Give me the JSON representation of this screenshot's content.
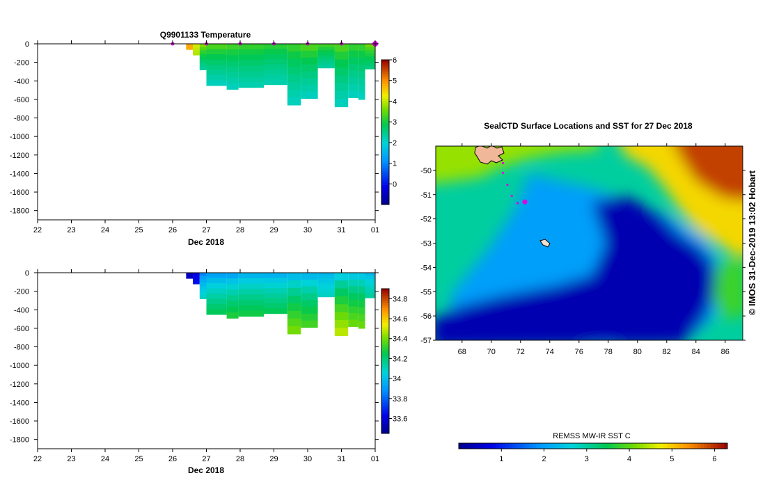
{
  "chart_data": [
    {
      "type": "heatmap",
      "title": "Q9901133  Temperature",
      "xlabel": "Dec 2018",
      "ylabel": "",
      "x_ticks": [
        "22",
        "23",
        "24",
        "25",
        "26",
        "27",
        "28",
        "29",
        "30",
        "31",
        "01"
      ],
      "y_ticks": [
        "0",
        "-200",
        "-400",
        "-600",
        "-800",
        "-1000",
        "-1200",
        "-1400",
        "-1600",
        "-1800"
      ],
      "ylim": [
        -1900,
        0
      ],
      "xlim_days": [
        22,
        32
      ],
      "colorbar": {
        "ticks": [
          "0",
          "1",
          "2",
          "3",
          "4",
          "5",
          "6"
        ],
        "range": [
          -1,
          6
        ]
      },
      "profile_markers_day": [
        26,
        27,
        28,
        29,
        30,
        31,
        32
      ],
      "profiles": [
        {
          "x0": 26.4,
          "x1": 26.6,
          "maxdepth": -60,
          "surface": 4.8,
          "deep": 4.8
        },
        {
          "x0": 26.6,
          "x1": 26.8,
          "maxdepth": -120,
          "surface": 4.2,
          "deep": 3.9
        },
        {
          "x0": 26.8,
          "x1": 27.0,
          "maxdepth": -280,
          "surface": 4.0,
          "deep": 2.3
        },
        {
          "x0": 27.0,
          "x1": 27.6,
          "maxdepth": -450,
          "surface": 3.6,
          "deep": 2.1
        },
        {
          "x0": 27.6,
          "x1": 27.95,
          "maxdepth": -490,
          "surface": 3.5,
          "deep": 2.1
        },
        {
          "x0": 27.95,
          "x1": 28.7,
          "maxdepth": -470,
          "surface": 3.4,
          "deep": 2.2
        },
        {
          "x0": 28.7,
          "x1": 29.4,
          "maxdepth": -440,
          "surface": 3.3,
          "deep": 2.2
        },
        {
          "x0": 29.4,
          "x1": 29.8,
          "maxdepth": -660,
          "surface": 3.4,
          "deep": 2.1
        },
        {
          "x0": 29.8,
          "x1": 30.3,
          "maxdepth": -590,
          "surface": 3.6,
          "deep": 2.1
        },
        {
          "x0": 30.3,
          "x1": 30.8,
          "maxdepth": -260,
          "surface": 3.5,
          "deep": 2.3
        },
        {
          "x0": 30.8,
          "x1": 31.2,
          "maxdepth": -680,
          "surface": 3.6,
          "deep": 2.1
        },
        {
          "x0": 31.2,
          "x1": 31.5,
          "maxdepth": -580,
          "surface": 3.4,
          "deep": 2.1
        },
        {
          "x0": 31.5,
          "x1": 31.7,
          "maxdepth": -600,
          "surface": 3.4,
          "deep": 2.1
        },
        {
          "x0": 31.7,
          "x1": 32.0,
          "maxdepth": -270,
          "surface": 3.8,
          "deep": 2.5
        }
      ]
    },
    {
      "type": "heatmap",
      "title": "",
      "xlabel": "Dec 2018",
      "ylabel": "",
      "x_ticks": [
        "22",
        "23",
        "24",
        "25",
        "26",
        "27",
        "28",
        "29",
        "30",
        "31",
        "01"
      ],
      "y_ticks": [
        "0",
        "-200",
        "-400",
        "-600",
        "-800",
        "-1000",
        "-1200",
        "-1400",
        "-1600",
        "-1800"
      ],
      "ylim": [
        -1900,
        0
      ],
      "xlim_days": [
        22,
        32
      ],
      "colorbar": {
        "ticks": [
          "33.6",
          "33.8",
          "34",
          "34.2",
          "34.4",
          "34.6",
          "34.8"
        ],
        "range": [
          33.45,
          34.9
        ]
      },
      "profiles": [
        {
          "x0": 26.4,
          "x1": 26.6,
          "maxdepth": -60,
          "surface": 33.55,
          "deep": 33.55
        },
        {
          "x0": 26.6,
          "x1": 26.8,
          "maxdepth": -120,
          "surface": 33.6,
          "deep": 33.65
        },
        {
          "x0": 26.8,
          "x1": 27.0,
          "maxdepth": -280,
          "surface": 33.8,
          "deep": 34.1
        },
        {
          "x0": 27.0,
          "x1": 27.6,
          "maxdepth": -450,
          "surface": 33.85,
          "deep": 34.25
        },
        {
          "x0": 27.6,
          "x1": 27.95,
          "maxdepth": -490,
          "surface": 33.85,
          "deep": 34.3
        },
        {
          "x0": 27.95,
          "x1": 28.7,
          "maxdepth": -470,
          "surface": 33.9,
          "deep": 34.28
        },
        {
          "x0": 28.7,
          "x1": 29.4,
          "maxdepth": -440,
          "surface": 33.9,
          "deep": 34.25
        },
        {
          "x0": 29.4,
          "x1": 29.8,
          "maxdepth": -660,
          "surface": 33.9,
          "deep": 34.42
        },
        {
          "x0": 29.8,
          "x1": 30.3,
          "maxdepth": -590,
          "surface": 33.9,
          "deep": 34.35
        },
        {
          "x0": 30.3,
          "x1": 30.8,
          "maxdepth": -260,
          "surface": 33.95,
          "deep": 34.1
        },
        {
          "x0": 30.8,
          "x1": 31.2,
          "maxdepth": -680,
          "surface": 33.95,
          "deep": 34.5
        },
        {
          "x0": 31.2,
          "x1": 31.5,
          "maxdepth": -580,
          "surface": 33.95,
          "deep": 34.4
        },
        {
          "x0": 31.5,
          "x1": 31.7,
          "maxdepth": -600,
          "surface": 33.95,
          "deep": 34.4
        },
        {
          "x0": 31.7,
          "x1": 32.0,
          "maxdepth": -270,
          "surface": 33.95,
          "deep": 34.15
        }
      ]
    },
    {
      "type": "heatmap",
      "title": "SealCTD Surface Locations and SST for 27 Dec 2018",
      "xlabel": "",
      "ylabel": "",
      "x_ticks": [
        "68",
        "70",
        "72",
        "74",
        "76",
        "78",
        "80",
        "82",
        "84",
        "86"
      ],
      "y_ticks": [
        "-50",
        "-51",
        "-52",
        "-53",
        "-54",
        "-55",
        "-56",
        "-57"
      ],
      "xlim": [
        66.2,
        87.2
      ],
      "ylim": [
        -57.0,
        -49.0
      ],
      "colorbar": {
        "label": "REMSS MW-IR SST C",
        "ticks": [
          "1",
          "2",
          "3",
          "4",
          "5",
          "6"
        ],
        "range": [
          0,
          6.3
        ]
      },
      "track": [
        {
          "lon": 70.8,
          "lat": -49.7
        },
        {
          "lon": 70.8,
          "lat": -50.1
        },
        {
          "lon": 71.1,
          "lat": -50.6
        },
        {
          "lon": 71.4,
          "lat": -51.05
        },
        {
          "lon": 71.8,
          "lat": -51.35
        },
        {
          "lon": 72.2,
          "lat": -51.3
        }
      ],
      "current_position": {
        "lon": 72.3,
        "lat": -51.3
      },
      "sst_regions": [
        {
          "name": "warm-north",
          "value": 4.3
        },
        {
          "name": "central-green",
          "value": 3.0
        },
        {
          "name": "cold-southeast",
          "value": 0.3
        },
        {
          "name": "hot-northeast",
          "value": 5.9
        }
      ]
    }
  ],
  "credit": "© IMOS 31-Dec-2019 13:02 Hobart",
  "colors": {
    "marker": "#e000e0",
    "land": "#f0b898"
  }
}
